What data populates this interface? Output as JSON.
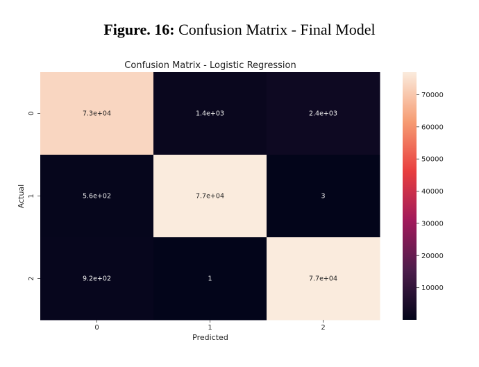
{
  "figure_caption": {
    "label": "Figure. 16:",
    "text": "Confusion Matrix - Final Model"
  },
  "chart_data": {
    "type": "heatmap",
    "title": "Confusion Matrix - Logistic Regression",
    "xlabel": "Predicted",
    "ylabel": "Actual",
    "x_categories": [
      "0",
      "1",
      "2"
    ],
    "y_categories": [
      "0",
      "1",
      "2"
    ],
    "values": [
      [
        73000,
        1400,
        2400
      ],
      [
        560,
        77000,
        3
      ],
      [
        920,
        1,
        77000
      ]
    ],
    "annotations": [
      [
        "7.3e+04",
        "1.4e+03",
        "2.4e+03"
      ],
      [
        "5.6e+02",
        "7.7e+04",
        "3"
      ],
      [
        "9.2e+02",
        "1",
        "7.7e+04"
      ]
    ],
    "colorbar": {
      "ticks": [
        10000,
        20000,
        30000,
        40000,
        50000,
        60000,
        70000
      ],
      "tick_labels": [
        "10000",
        "20000",
        "30000",
        "40000",
        "50000",
        "60000",
        "70000"
      ],
      "range": [
        1,
        77000
      ]
    },
    "colormap": [
      "#03051a",
      "#4c1d4b",
      "#a11a5b",
      "#e83f3f",
      "#f69c73",
      "#faebdd"
    ],
    "grid": false
  }
}
